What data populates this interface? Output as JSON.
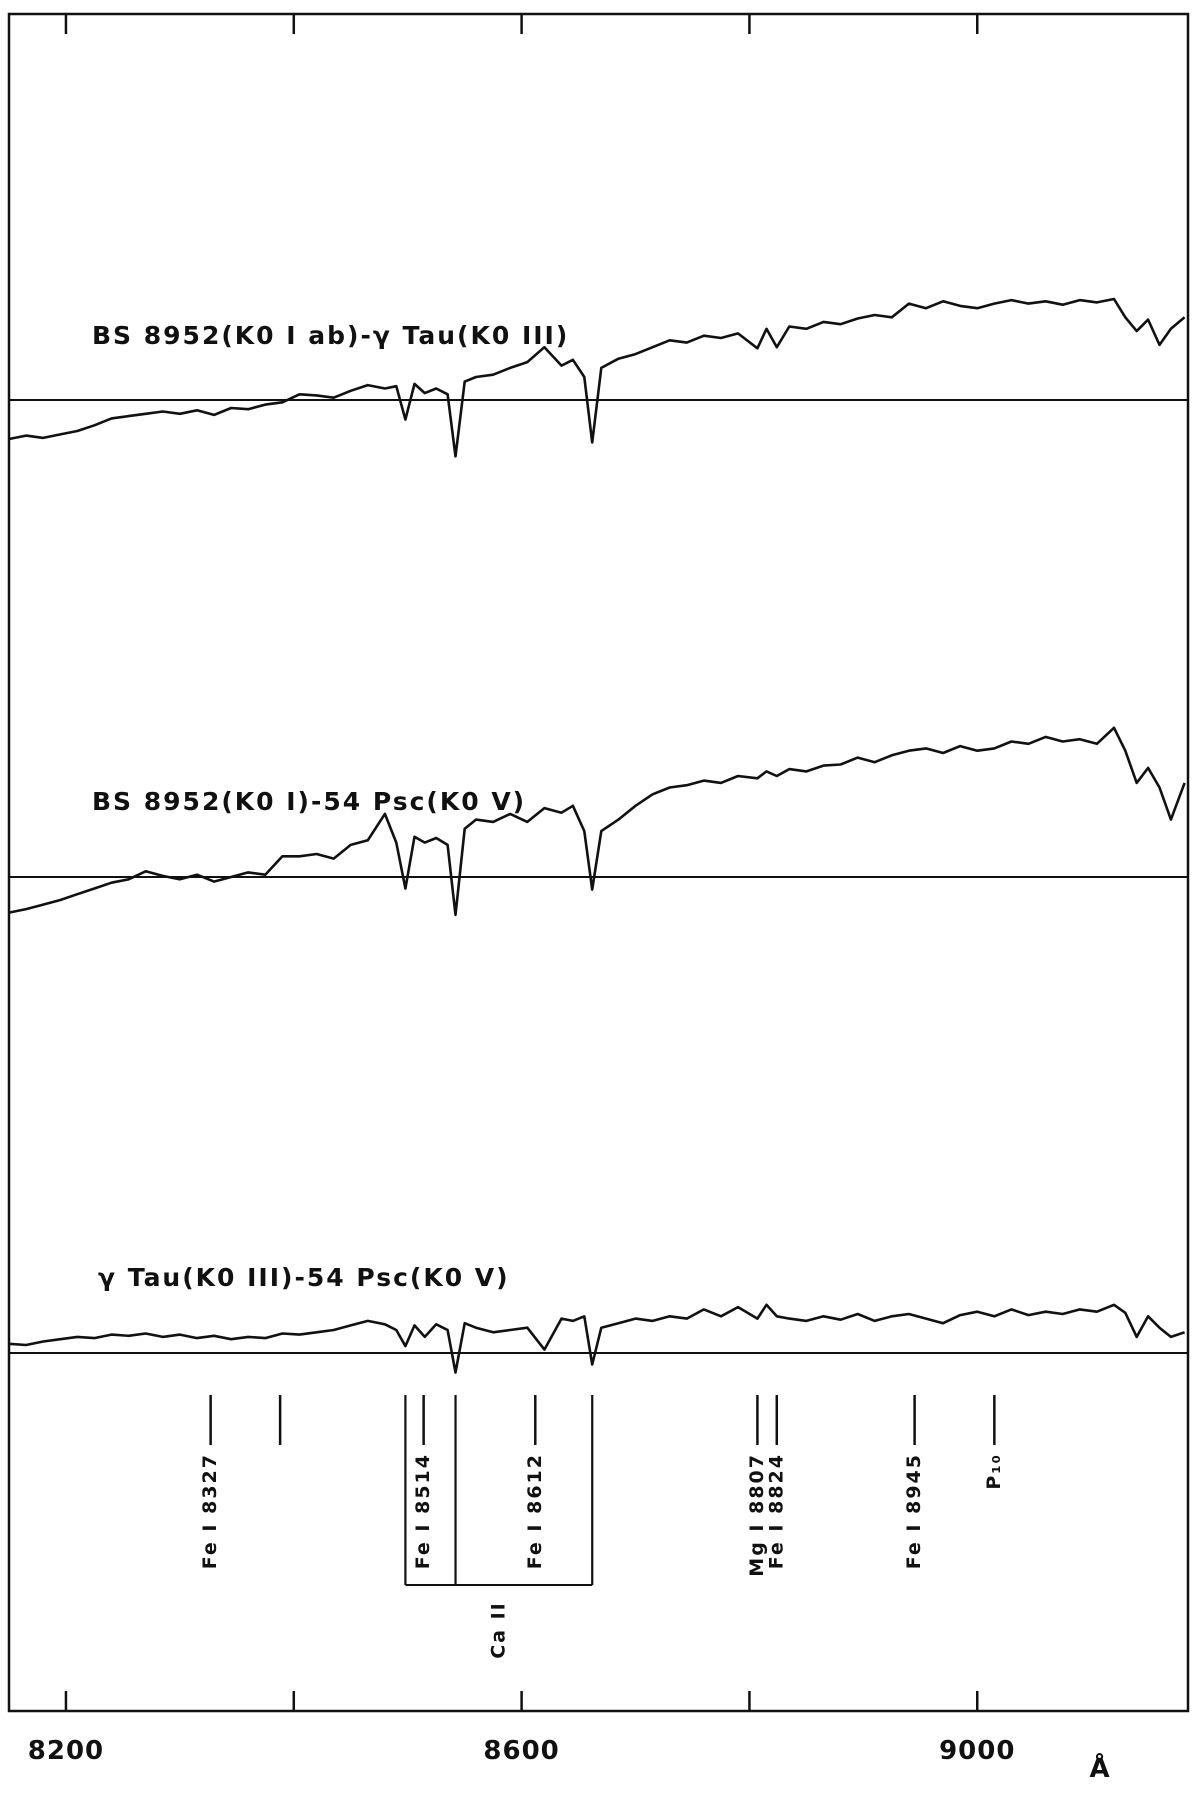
{
  "chart_data": {
    "type": "line",
    "xlabel": "Å",
    "xlim": [
      8150,
      9185
    ],
    "xticks": [
      8200,
      8600,
      9000
    ],
    "xminorticks": [
      8400,
      8800
    ],
    "x": [
      8150,
      8165,
      8180,
      8195,
      8210,
      8225,
      8240,
      8255,
      8270,
      8285,
      8300,
      8315,
      8330,
      8345,
      8360,
      8375,
      8390,
      8405,
      8420,
      8435,
      8450,
      8465,
      8480,
      8490,
      8498,
      8506,
      8515,
      8525,
      8535,
      8542,
      8550,
      8560,
      8575,
      8590,
      8605,
      8620,
      8635,
      8645,
      8655,
      8662,
      8670,
      8685,
      8700,
      8715,
      8730,
      8745,
      8760,
      8775,
      8790,
      8807,
      8815,
      8824,
      8835,
      8850,
      8865,
      8880,
      8895,
      8910,
      8925,
      8940,
      8955,
      8970,
      8985,
      9000,
      9015,
      9030,
      9045,
      9060,
      9075,
      9090,
      9105,
      9120,
      9130,
      9140,
      9150,
      9160,
      9170,
      9182
    ],
    "series": [
      {
        "name": "BS 8952(K0 I ab)-γ Tau(K0 III)",
        "color": "#111111",
        "values": [
          -0.34,
          -0.31,
          -0.33,
          -0.3,
          -0.27,
          -0.22,
          -0.16,
          -0.14,
          -0.12,
          -0.1,
          -0.12,
          -0.09,
          -0.13,
          -0.07,
          -0.08,
          -0.04,
          -0.02,
          0.05,
          0.04,
          0.02,
          0.08,
          0.13,
          0.1,
          0.12,
          -0.17,
          0.14,
          0.06,
          0.1,
          0.05,
          -0.49,
          0.16,
          0.2,
          0.22,
          0.28,
          0.33,
          0.46,
          0.3,
          0.35,
          0.2,
          -0.37,
          0.28,
          0.36,
          0.4,
          0.46,
          0.52,
          0.5,
          0.56,
          0.54,
          0.58,
          0.45,
          0.62,
          0.46,
          0.64,
          0.62,
          0.68,
          0.66,
          0.71,
          0.74,
          0.72,
          0.84,
          0.8,
          0.86,
          0.82,
          0.8,
          0.84,
          0.87,
          0.84,
          0.86,
          0.83,
          0.87,
          0.85,
          0.88,
          0.72,
          0.6,
          0.7,
          0.48,
          0.62,
          0.72
        ]
      },
      {
        "name": "BS 8952(K0 I)-54 Psc(K0 V)",
        "color": "#111111",
        "values": [
          -0.31,
          -0.28,
          -0.24,
          -0.2,
          -0.15,
          -0.1,
          -0.05,
          -0.02,
          0.05,
          0.01,
          -0.02,
          0.02,
          -0.04,
          0.0,
          0.04,
          0.02,
          0.18,
          0.18,
          0.2,
          0.16,
          0.28,
          0.32,
          0.55,
          0.3,
          -0.1,
          0.35,
          0.3,
          0.34,
          0.28,
          -0.33,
          0.42,
          0.5,
          0.48,
          0.55,
          0.48,
          0.6,
          0.56,
          0.62,
          0.4,
          -0.11,
          0.4,
          0.5,
          0.62,
          0.72,
          0.78,
          0.8,
          0.84,
          0.82,
          0.88,
          0.86,
          0.92,
          0.88,
          0.94,
          0.92,
          0.97,
          0.98,
          1.04,
          1.0,
          1.06,
          1.1,
          1.12,
          1.08,
          1.14,
          1.1,
          1.12,
          1.18,
          1.16,
          1.22,
          1.18,
          1.2,
          1.16,
          1.3,
          1.1,
          0.82,
          0.95,
          0.78,
          0.5,
          0.82
        ]
      },
      {
        "name": "γ Tau(K0 III)-54 Psc(K0 V)",
        "color": "#111111",
        "values": [
          0.08,
          0.07,
          0.1,
          0.12,
          0.14,
          0.13,
          0.16,
          0.15,
          0.17,
          0.14,
          0.16,
          0.13,
          0.15,
          0.12,
          0.14,
          0.13,
          0.17,
          0.16,
          0.18,
          0.2,
          0.24,
          0.28,
          0.25,
          0.2,
          0.06,
          0.24,
          0.14,
          0.25,
          0.2,
          -0.17,
          0.26,
          0.22,
          0.18,
          0.2,
          0.22,
          0.03,
          0.3,
          0.28,
          0.32,
          -0.1,
          0.22,
          0.26,
          0.3,
          0.28,
          0.32,
          0.3,
          0.38,
          0.32,
          0.4,
          0.3,
          0.42,
          0.32,
          0.3,
          0.28,
          0.32,
          0.29,
          0.34,
          0.28,
          0.32,
          0.34,
          0.3,
          0.26,
          0.33,
          0.36,
          0.32,
          0.38,
          0.33,
          0.36,
          0.34,
          0.38,
          0.36,
          0.42,
          0.35,
          0.14,
          0.32,
          0.22,
          0.14,
          0.18
        ]
      }
    ],
    "lines": [
      {
        "label": "Fe I 8327",
        "x": 8327
      },
      {
        "x": 8388
      },
      {
        "label": "Fe I 8514",
        "x": 8514
      },
      {
        "label": "Fe I 8612",
        "x": 8612
      },
      {
        "label": "Mg I 8807",
        "x": 8807
      },
      {
        "label": "Fe I 8824",
        "x": 8824
      },
      {
        "label": "Fe I 8945",
        "x": 8945
      },
      {
        "label": "P₁₀",
        "x": 9015
      }
    ],
    "ca_ii": {
      "label": "Ca II",
      "x": [
        8498,
        8542,
        8662
      ]
    }
  }
}
